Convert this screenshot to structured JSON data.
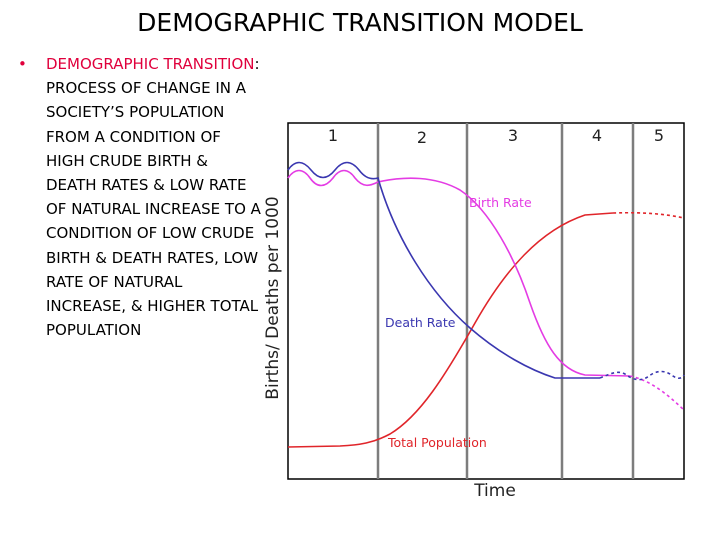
{
  "slide": {
    "title": "DEMOGRAPHIC TRANSITION MODEL",
    "bullet_term": "DEMOGRAPHIC TRANSITION",
    "bullet_definition": ": PROCESS OF CHANGE IN A SOCIETY’S POPULATION FROM A CONDITION OF HIGH CRUDE BIRTH & DEATH RATES & LOW RATE OF NATURAL INCREASE TO A CONDITION OF LOW CRUDE BIRTH & DEATH RATES, LOW RATE OF NATURAL INCREASE, & HIGHER TOTAL POPULATION"
  },
  "diagram": {
    "stages": [
      "1",
      "2",
      "3",
      "4",
      "5"
    ],
    "y_axis_label": "Births/ Deaths per 1000",
    "x_axis_label": "Time",
    "curves": {
      "birth_rate": {
        "label": "Birth Rate",
        "color": "#e43ce4"
      },
      "death_rate": {
        "label": "Death Rate",
        "color": "#3a37b0"
      },
      "total_population": {
        "label": "Total Population",
        "color": "#e0252a"
      }
    },
    "stage_divider_color": "#7d7d7d",
    "frame_color": "#000000"
  }
}
